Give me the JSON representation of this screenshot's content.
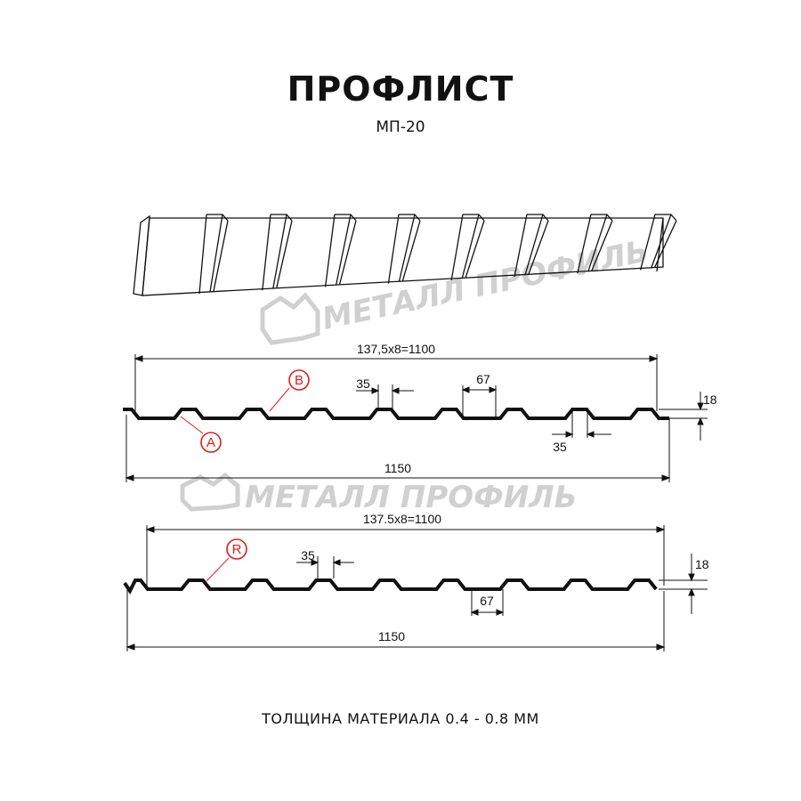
{
  "header": {
    "title": "ПРОФЛИСТ",
    "subtitle": "МП-20"
  },
  "watermark": {
    "text": "МЕТАЛЛ ПРОФИЛЬ",
    "color": "#d0d0d0"
  },
  "profile_a": {
    "pitch_label": "137,5x8=1100",
    "width_label": "1150",
    "top_width_label": "35",
    "bottom_width_label": "35",
    "crest_label": "67",
    "height_label": "18",
    "marker_a": "A",
    "marker_b": "B"
  },
  "profile_r": {
    "pitch_label": "137.5x8=1100",
    "width_label": "1150",
    "top_width_label": "35",
    "crest_label": "67",
    "height_label": "18",
    "marker_r": "R"
  },
  "colors": {
    "profile": "#111111",
    "marker": "#e01b1b"
  },
  "footer": {
    "thickness": "ТОЛЩИНА МАТЕРИАЛА 0.4 - 0.8 ММ"
  }
}
